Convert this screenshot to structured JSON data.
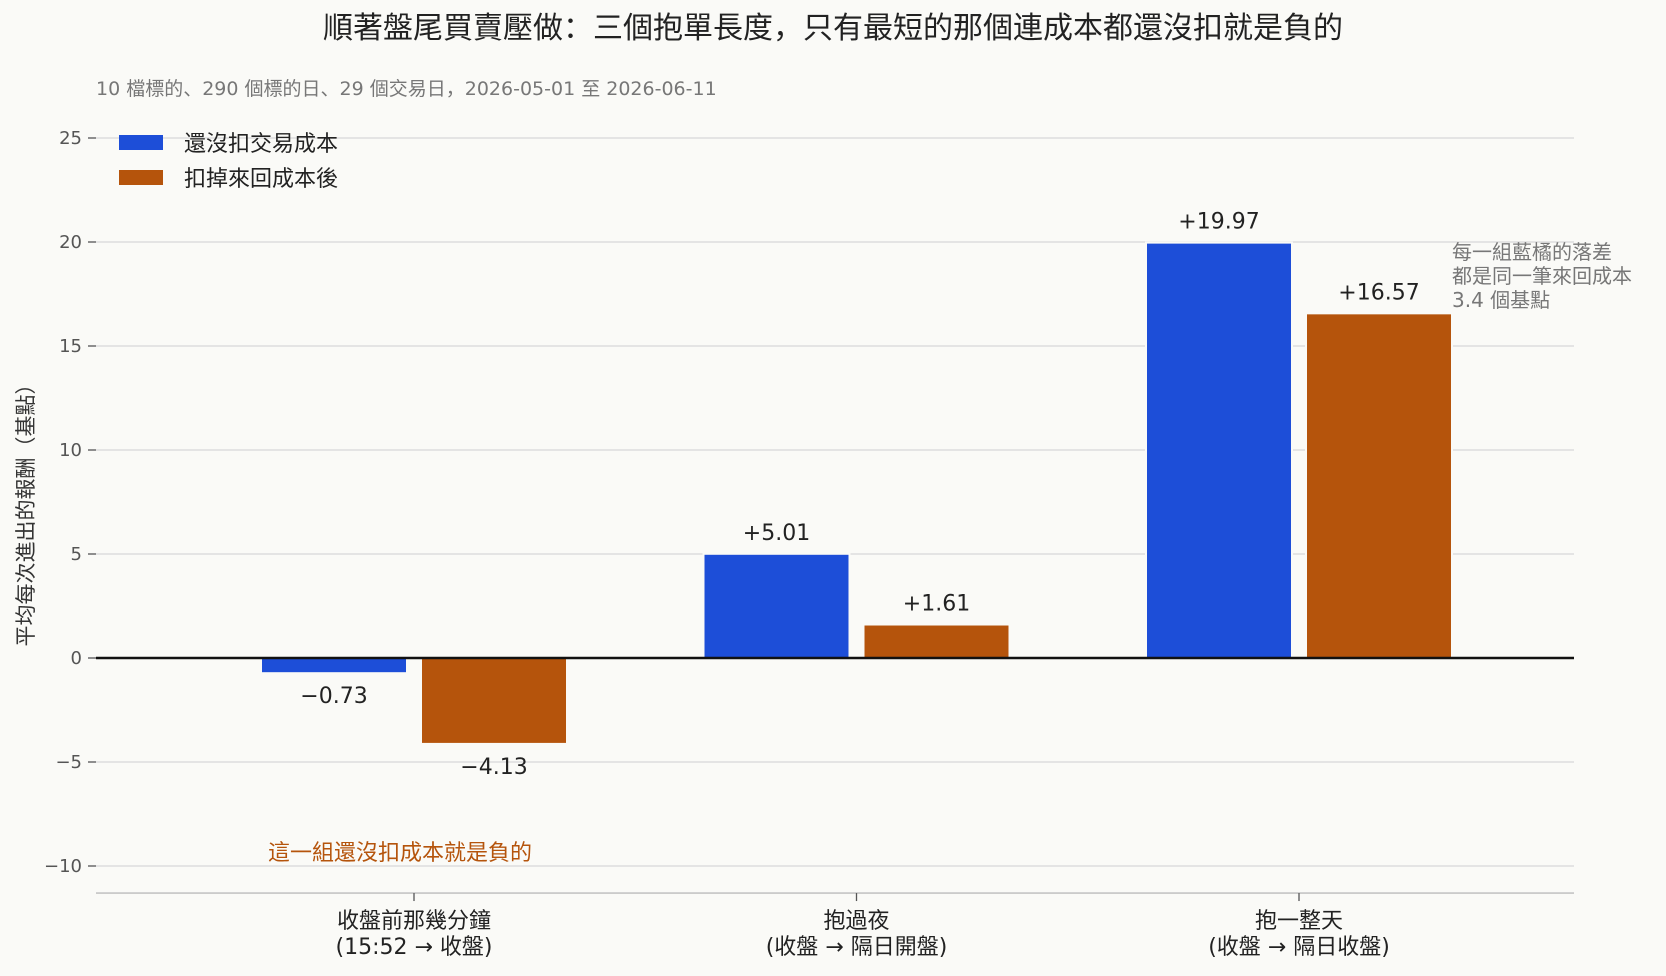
{
  "title": "順著盤尾買賣壓做：三個抱單長度，只有最短的那個連成本都還沒扣就是負的",
  "subtitle": "10 檔標的、290 個標的日、29 個交易日，2026-05-01 至 2026-06-11",
  "chart_data": {
    "type": "bar",
    "ylabel": "平均每次進出的報酬（基點）",
    "xlabel": "",
    "ylim": [
      -11.3,
      25.5
    ],
    "yticks": [
      -10,
      -5,
      0,
      5,
      10,
      15,
      20,
      25
    ],
    "ytick_labels": [
      "−10",
      "−5",
      "0",
      "5",
      "10",
      "15",
      "20",
      "25"
    ],
    "grid": true,
    "legend_position": "top-left",
    "categories": [
      {
        "line1": "收盤前那幾分鐘",
        "line2": "(15:52 → 收盤)"
      },
      {
        "line1": "抱過夜",
        "line2": "(收盤 → 隔日開盤)"
      },
      {
        "line1": "抱一整天",
        "line2": "(收盤 → 隔日收盤)"
      }
    ],
    "series": [
      {
        "name": "還沒扣交易成本",
        "color": "#1d4ed8",
        "values": [
          -0.73,
          5.01,
          19.97
        ],
        "labels": [
          "−0.73",
          "+5.01",
          "+19.97"
        ]
      },
      {
        "name": "扣掉來回成本後",
        "color": "#b5540c",
        "values": [
          -4.13,
          1.61,
          16.57
        ],
        "labels": [
          "−4.13",
          "+1.61",
          "+16.57"
        ]
      }
    ],
    "annotations": {
      "cost_note": [
        "每一組藍橘的落差",
        "都是同一筆來回成本",
        "3.4 個基點"
      ],
      "negative_note": "這一組還沒扣成本就是負的"
    }
  }
}
